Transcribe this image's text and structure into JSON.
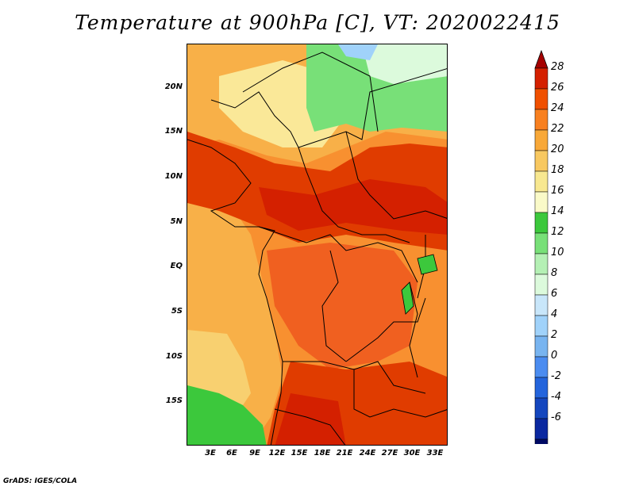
{
  "title": "Temperature at 900hPa [C], VT: 2020022415",
  "footer": "GrADS: IGES/COLA",
  "lat_labels": [
    "20N",
    "15N",
    "10N",
    "5N",
    "EQ",
    "5S",
    "10S",
    "15S"
  ],
  "lon_labels": [
    "3E",
    "6E",
    "9E",
    "12E",
    "15E",
    "18E",
    "21E",
    "24E",
    "27E",
    "30E",
    "33E"
  ],
  "colorbar": {
    "levels": [
      "28",
      "26",
      "24",
      "22",
      "20",
      "18",
      "16",
      "14",
      "12",
      "10",
      "8",
      "6",
      "4",
      "2",
      "0",
      "-2",
      "-4",
      "-6"
    ],
    "colors": [
      "#a50000",
      "#d42000",
      "#f05000",
      "#f88020",
      "#f8a838",
      "#f8c860",
      "#f8e890",
      "#fafac8",
      "#3cc83c",
      "#78e078",
      "#b4f0b4",
      "#dcfadc",
      "#c8e6fa",
      "#a0d2fa",
      "#78b4f0",
      "#4b8cf0",
      "#2364dc",
      "#1446be",
      "#0a28a0",
      "#000a64",
      "#dcdcf0"
    ]
  },
  "map_colors": {
    "c28": "#d42000",
    "c26": "#e03c00",
    "c24": "#f06020",
    "c22": "#f89030",
    "c20": "#f8b048",
    "c18": "#f8d070",
    "c16": "#fae898",
    "c14": "#3cc83c",
    "c12": "#78e078",
    "c10": "#b4f0b4",
    "c8": "#dcfadc",
    "c6": "#c8e6fa",
    "c4": "#a0d2fa"
  }
}
